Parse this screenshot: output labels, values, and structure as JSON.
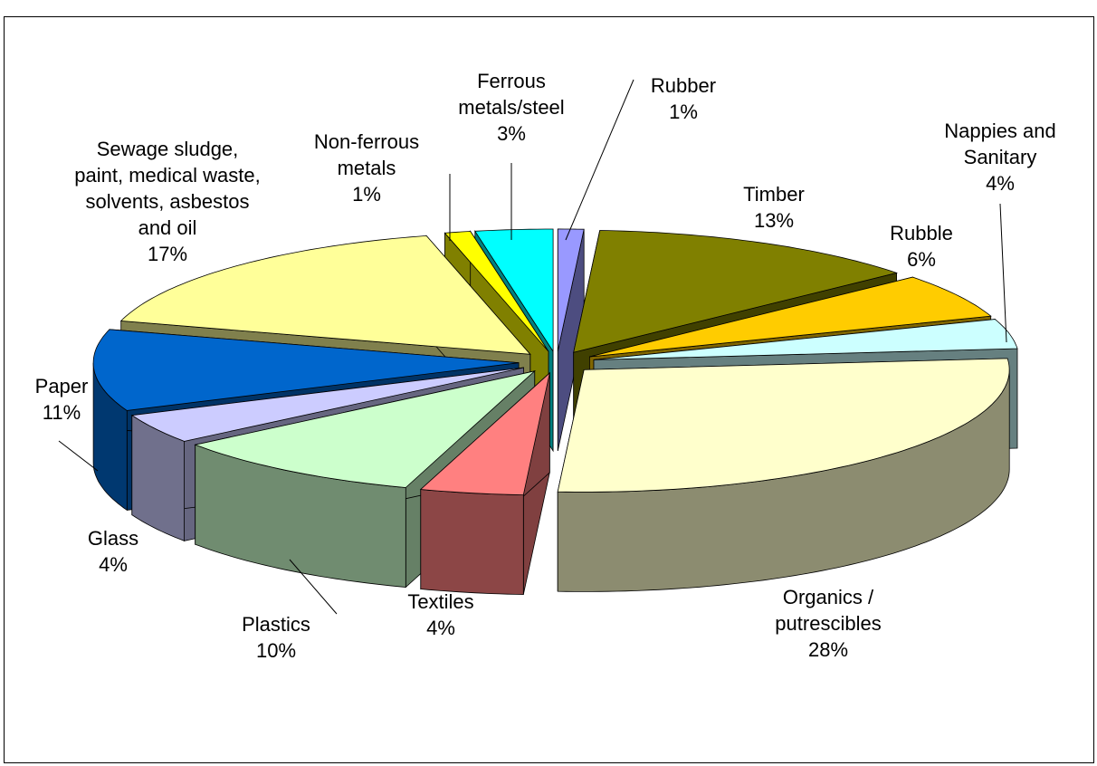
{
  "chart_data": {
    "type": "pie3d",
    "categories": [
      "Rubber",
      "Timber",
      "Rubble",
      "Nappies and Sanitary",
      "Organics / putrescibles",
      "Textiles",
      "Plastics",
      "Glass",
      "Paper",
      "Sewage sludge, paint, medical waste, solvents, asbestos and oil",
      "Non-ferrous metals",
      "Ferrous metals/steel"
    ],
    "values": [
      1,
      13,
      6,
      4,
      28,
      4,
      10,
      4,
      11,
      17,
      1,
      3
    ],
    "value_labels": [
      "1%",
      "13%",
      "6%",
      "4%",
      "28%",
      "4%",
      "10%",
      "4%",
      "11%",
      "17%",
      "1%",
      "3%"
    ],
    "colors": [
      "#9999ff",
      "#808000",
      "#ffcc00",
      "#ccffff",
      "#ffffcc",
      "#ff8080",
      "#ccffcc",
      "#ccccff",
      "#0066cc",
      "#ffff99",
      "#ffff00",
      "#00ffff"
    ]
  }
}
